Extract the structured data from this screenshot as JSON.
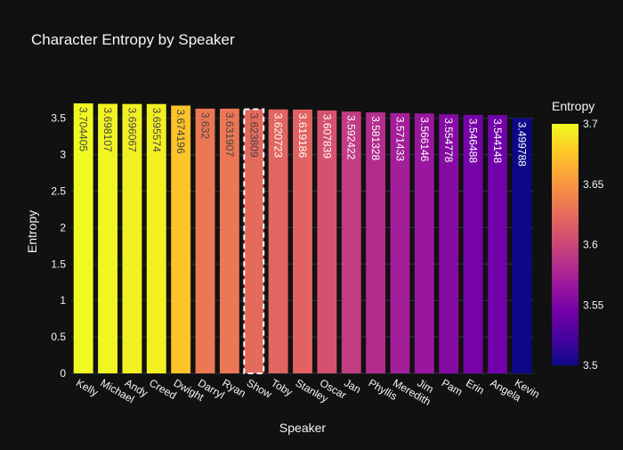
{
  "chart_data": {
    "type": "bar",
    "title": "Character Entropy by Speaker",
    "xlabel": "Speaker",
    "ylabel": "Entropy",
    "ylim": [
      0,
      3.7044
    ],
    "yticks": [
      0,
      0.5,
      1,
      1.5,
      2,
      2.5,
      3,
      3.5
    ],
    "ytick_labels": [
      "0",
      "0.5",
      "1",
      "1.5",
      "2",
      "2.5",
      "3",
      "3.5"
    ],
    "grid": true,
    "categories": [
      "Kelly",
      "Michael",
      "Andy",
      "Creed",
      "Dwight",
      "Darryl",
      "Ryan",
      "Show",
      "Toby",
      "Stanley",
      "Oscar",
      "Jan",
      "Phyllis",
      "Meredith",
      "Jim",
      "Pam",
      "Erin",
      "Angela",
      "Kevin"
    ],
    "values": [
      3.704405,
      3.698107,
      3.696067,
      3.695574,
      3.674196,
      3.632,
      3.631907,
      3.623809,
      3.620723,
      3.619186,
      3.607839,
      3.592422,
      3.581328,
      3.571433,
      3.566146,
      3.554778,
      3.546488,
      3.544148,
      3.499788
    ],
    "value_labels": [
      "3.704405",
      "3.698107",
      "3.696067",
      "3.695574",
      "3.674196",
      "3.632",
      "3.631907",
      "3.623809",
      "3.620723",
      "3.619186",
      "3.607839",
      "3.592422",
      "3.581328",
      "3.571433",
      "3.566146",
      "3.554778",
      "3.546488",
      "3.544148",
      "3.499788"
    ],
    "highlighted_category": "Show",
    "colorbar": {
      "title": "Entropy",
      "range": [
        3.5,
        3.7
      ],
      "ticks": [
        3.5,
        3.55,
        3.6,
        3.65,
        3.7
      ],
      "tick_labels": [
        "3.5",
        "3.55",
        "3.6",
        "3.65",
        "3.7"
      ],
      "placement": "right",
      "colorscale": [
        "#0d0887",
        "#46039f",
        "#7201a8",
        "#9c179e",
        "#bd3786",
        "#d8576b",
        "#ed7953",
        "#fb9f3a",
        "#fdca26",
        "#f0f921"
      ]
    },
    "colors": {
      "background": "#111111",
      "grid": "#283442",
      "text": "#f2f5fa",
      "highlight_outline": "#ffffff"
    }
  }
}
